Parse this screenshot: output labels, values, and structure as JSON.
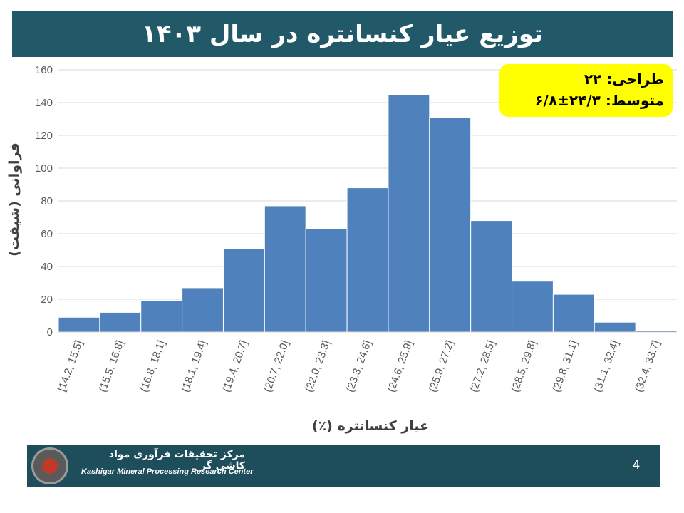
{
  "slide": {
    "title": "توزیع عیار کنسانتره در سال ۱۴۰۳",
    "page_number": "4"
  },
  "info_box": {
    "line1": "طراحی: ۲۲",
    "line2": "متوسط: ۲۴/۳±۶/۸"
  },
  "footer": {
    "org_name_fa": "مرکز تحقیقات فرآوری مواد کاشی گر",
    "org_name_en": "Kashigar Mineral Processing Research Center",
    "logo_icon": "kashigar-logo-icon"
  },
  "chart_data": {
    "type": "bar",
    "title": "توزیع عیار کنسانتره در سال ۱۴۰۳",
    "xlabel": "عیار کنسانتره (٪)",
    "ylabel": "فراوانی (شیفت)",
    "categories": [
      "[14.2, 15.5]",
      "(15.5, 16.8]",
      "(16.8, 18.1]",
      "(18.1, 19.4]",
      "(19.4, 20.7]",
      "(20.7, 22.0]",
      "(22.0, 23.3]",
      "(23.3, 24.6]",
      "(24.6, 25.9]",
      "(25.9, 27.2]",
      "(27.2, 28.5]",
      "(28.5, 29.8]",
      "(29.8, 31.1]",
      "(31.1, 32.4]",
      "(32.4, 33.7]"
    ],
    "values": [
      9,
      12,
      19,
      27,
      51,
      77,
      63,
      88,
      145,
      131,
      68,
      31,
      23,
      6,
      1
    ],
    "ylim": [
      0,
      160
    ],
    "yticks": [
      0,
      20,
      40,
      60,
      80,
      100,
      120,
      140,
      160
    ],
    "grid": true,
    "bar_color": "#4f81bd",
    "bar_edge_color": "#ffffff"
  }
}
